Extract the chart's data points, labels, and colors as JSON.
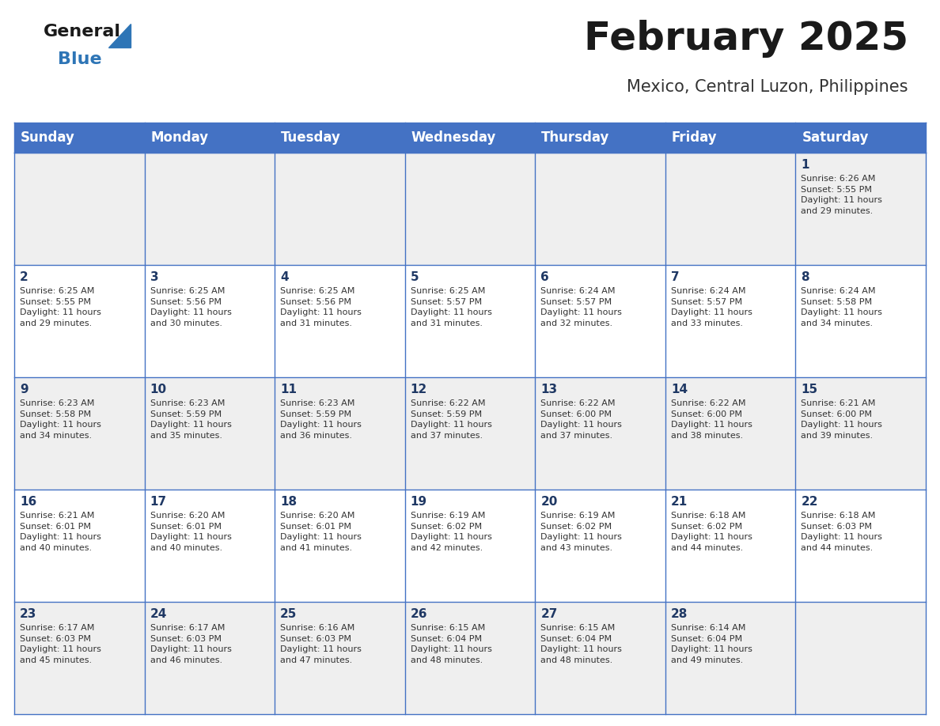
{
  "title": "February 2025",
  "subtitle": "Mexico, Central Luzon, Philippines",
  "days_of_week": [
    "Sunday",
    "Monday",
    "Tuesday",
    "Wednesday",
    "Thursday",
    "Friday",
    "Saturday"
  ],
  "header_bg": "#4472C4",
  "header_text": "#FFFFFF",
  "cell_bg_odd": "#EFEFEF",
  "cell_bg_even": "#FFFFFF",
  "cell_text": "#333333",
  "day_num_color": "#1F3864",
  "border_color": "#4472C4",
  "title_color": "#1a1a1a",
  "subtitle_color": "#333333",
  "general_color": "#1a1a1a",
  "blue_color": "#2E75B6",
  "weeks": [
    [
      {
        "day": null,
        "info": ""
      },
      {
        "day": null,
        "info": ""
      },
      {
        "day": null,
        "info": ""
      },
      {
        "day": null,
        "info": ""
      },
      {
        "day": null,
        "info": ""
      },
      {
        "day": null,
        "info": ""
      },
      {
        "day": 1,
        "info": "Sunrise: 6:26 AM\nSunset: 5:55 PM\nDaylight: 11 hours\nand 29 minutes."
      }
    ],
    [
      {
        "day": 2,
        "info": "Sunrise: 6:25 AM\nSunset: 5:55 PM\nDaylight: 11 hours\nand 29 minutes."
      },
      {
        "day": 3,
        "info": "Sunrise: 6:25 AM\nSunset: 5:56 PM\nDaylight: 11 hours\nand 30 minutes."
      },
      {
        "day": 4,
        "info": "Sunrise: 6:25 AM\nSunset: 5:56 PM\nDaylight: 11 hours\nand 31 minutes."
      },
      {
        "day": 5,
        "info": "Sunrise: 6:25 AM\nSunset: 5:57 PM\nDaylight: 11 hours\nand 31 minutes."
      },
      {
        "day": 6,
        "info": "Sunrise: 6:24 AM\nSunset: 5:57 PM\nDaylight: 11 hours\nand 32 minutes."
      },
      {
        "day": 7,
        "info": "Sunrise: 6:24 AM\nSunset: 5:57 PM\nDaylight: 11 hours\nand 33 minutes."
      },
      {
        "day": 8,
        "info": "Sunrise: 6:24 AM\nSunset: 5:58 PM\nDaylight: 11 hours\nand 34 minutes."
      }
    ],
    [
      {
        "day": 9,
        "info": "Sunrise: 6:23 AM\nSunset: 5:58 PM\nDaylight: 11 hours\nand 34 minutes."
      },
      {
        "day": 10,
        "info": "Sunrise: 6:23 AM\nSunset: 5:59 PM\nDaylight: 11 hours\nand 35 minutes."
      },
      {
        "day": 11,
        "info": "Sunrise: 6:23 AM\nSunset: 5:59 PM\nDaylight: 11 hours\nand 36 minutes."
      },
      {
        "day": 12,
        "info": "Sunrise: 6:22 AM\nSunset: 5:59 PM\nDaylight: 11 hours\nand 37 minutes."
      },
      {
        "day": 13,
        "info": "Sunrise: 6:22 AM\nSunset: 6:00 PM\nDaylight: 11 hours\nand 37 minutes."
      },
      {
        "day": 14,
        "info": "Sunrise: 6:22 AM\nSunset: 6:00 PM\nDaylight: 11 hours\nand 38 minutes."
      },
      {
        "day": 15,
        "info": "Sunrise: 6:21 AM\nSunset: 6:00 PM\nDaylight: 11 hours\nand 39 minutes."
      }
    ],
    [
      {
        "day": 16,
        "info": "Sunrise: 6:21 AM\nSunset: 6:01 PM\nDaylight: 11 hours\nand 40 minutes."
      },
      {
        "day": 17,
        "info": "Sunrise: 6:20 AM\nSunset: 6:01 PM\nDaylight: 11 hours\nand 40 minutes."
      },
      {
        "day": 18,
        "info": "Sunrise: 6:20 AM\nSunset: 6:01 PM\nDaylight: 11 hours\nand 41 minutes."
      },
      {
        "day": 19,
        "info": "Sunrise: 6:19 AM\nSunset: 6:02 PM\nDaylight: 11 hours\nand 42 minutes."
      },
      {
        "day": 20,
        "info": "Sunrise: 6:19 AM\nSunset: 6:02 PM\nDaylight: 11 hours\nand 43 minutes."
      },
      {
        "day": 21,
        "info": "Sunrise: 6:18 AM\nSunset: 6:02 PM\nDaylight: 11 hours\nand 44 minutes."
      },
      {
        "day": 22,
        "info": "Sunrise: 6:18 AM\nSunset: 6:03 PM\nDaylight: 11 hours\nand 44 minutes."
      }
    ],
    [
      {
        "day": 23,
        "info": "Sunrise: 6:17 AM\nSunset: 6:03 PM\nDaylight: 11 hours\nand 45 minutes."
      },
      {
        "day": 24,
        "info": "Sunrise: 6:17 AM\nSunset: 6:03 PM\nDaylight: 11 hours\nand 46 minutes."
      },
      {
        "day": 25,
        "info": "Sunrise: 6:16 AM\nSunset: 6:03 PM\nDaylight: 11 hours\nand 47 minutes."
      },
      {
        "day": 26,
        "info": "Sunrise: 6:15 AM\nSunset: 6:04 PM\nDaylight: 11 hours\nand 48 minutes."
      },
      {
        "day": 27,
        "info": "Sunrise: 6:15 AM\nSunset: 6:04 PM\nDaylight: 11 hours\nand 48 minutes."
      },
      {
        "day": 28,
        "info": "Sunrise: 6:14 AM\nSunset: 6:04 PM\nDaylight: 11 hours\nand 49 minutes."
      },
      {
        "day": null,
        "info": ""
      }
    ]
  ]
}
